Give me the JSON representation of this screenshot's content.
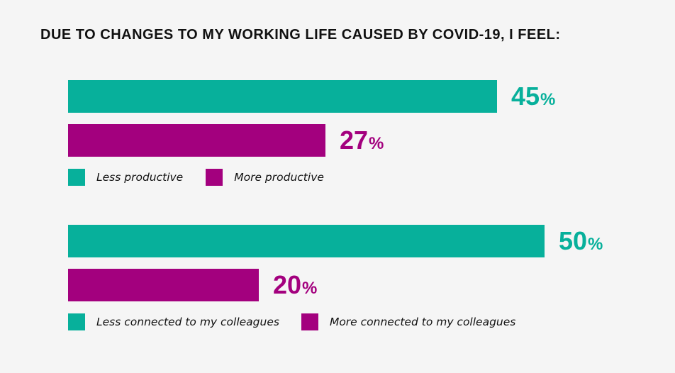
{
  "colors": {
    "less": "#07b09b",
    "more": "#a3007e",
    "text": "#111111",
    "background": "#f5f5f5"
  },
  "chart_data": {
    "type": "bar",
    "orientation": "horizontal",
    "title": "DUE TO CHANGES TO MY WORKING LIFE CAUSED BY COVID-19, I FEEL:",
    "xlim": [
      0,
      61
    ],
    "percent_symbol": "%",
    "groups": [
      {
        "bars": [
          {
            "name": "Less productive",
            "value": 45,
            "label": "45",
            "color": "#07b09b"
          },
          {
            "name": "More productive",
            "value": 27,
            "label": "27",
            "color": "#a3007e"
          }
        ]
      },
      {
        "bars": [
          {
            "name": "Less connected to my colleagues",
            "value": 50,
            "label": "50",
            "color": "#07b09b"
          },
          {
            "name": "More connected to my colleagues",
            "value": 20,
            "label": "20",
            "color": "#a3007e"
          }
        ]
      }
    ]
  }
}
